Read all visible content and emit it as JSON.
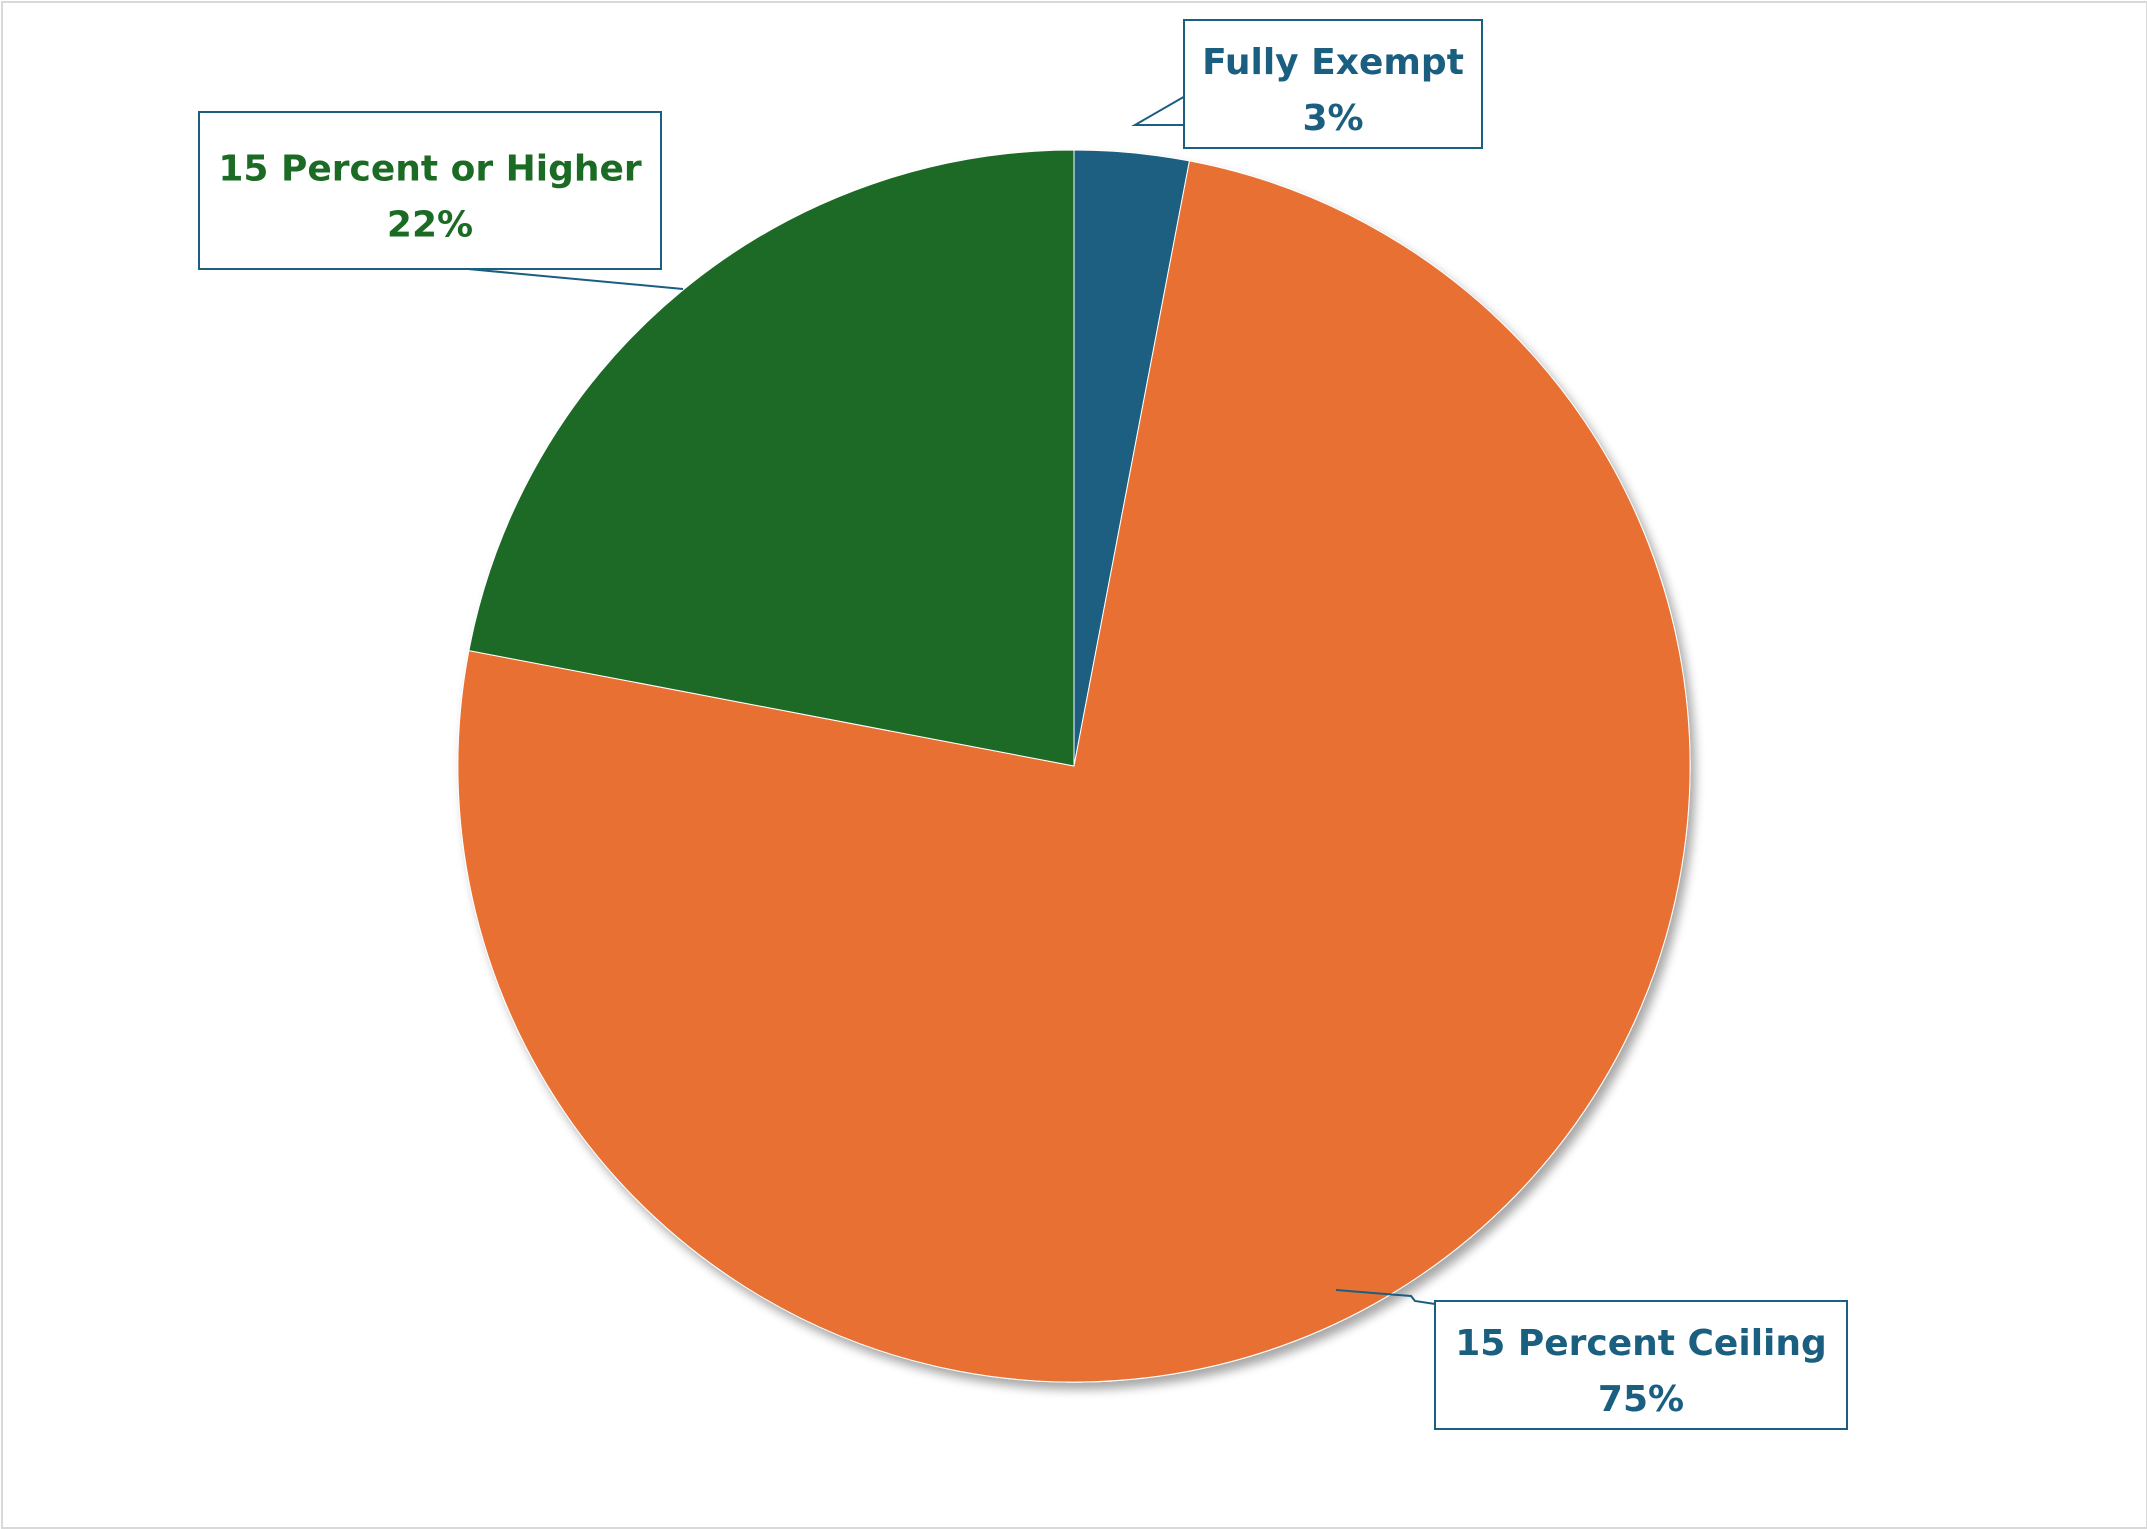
{
  "chart_data": {
    "type": "pie",
    "title": "",
    "slices": [
      {
        "name": "Fully Exempt",
        "value": 3,
        "value_label": "3%",
        "color": "#1a5e80",
        "label_color": "#1a5e80"
      },
      {
        "name": "15 Percent Ceiling",
        "value": 75,
        "value_label": "75%",
        "color": "#e87033",
        "label_color": "#1a5e80"
      },
      {
        "name": "15 Percent or Higher",
        "value": 22,
        "value_label": "22%",
        "color": "#1c6b25",
        "label_color": "#1c6b25"
      }
    ],
    "start_angle_deg": 0,
    "direction": "clockwise",
    "legend": "none",
    "data_labels": "callouts"
  }
}
